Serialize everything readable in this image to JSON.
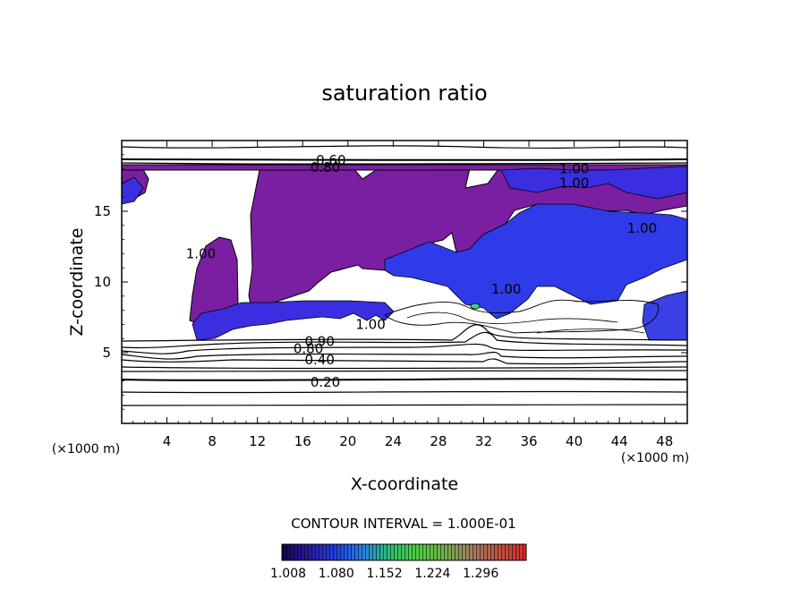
{
  "chart_data": {
    "type": "heatmap",
    "title": "saturation ratio",
    "xlabel": "X-coordinate",
    "ylabel": "Z-coordinate",
    "x_unit": "(×1000 m)",
    "z_unit": "(×1000 m)",
    "xlim": [
      0,
      50
    ],
    "ylim": [
      0,
      20
    ],
    "x_ticks": [
      "4",
      "8",
      "12",
      "16",
      "20",
      "24",
      "28",
      "32",
      "36",
      "40",
      "44",
      "48"
    ],
    "y_ticks": [
      "5",
      "10",
      "15"
    ],
    "contour_interval_text": "CONTOUR INTERVAL = 1.000E-01",
    "contour_labels": [
      {
        "text": "0.20",
        "x": 18.0,
        "z": 2.9
      },
      {
        "text": "0.40",
        "x": 17.5,
        "z": 4.5
      },
      {
        "text": "0.80",
        "x": 16.5,
        "z": 5.3
      },
      {
        "text": "0.90",
        "x": 17.5,
        "z": 5.8
      },
      {
        "text": "0.60",
        "x": 18.5,
        "z": 18.6
      },
      {
        "text": "0.80",
        "x": 18.0,
        "z": 18.1
      },
      {
        "text": "1.00",
        "x": 40.0,
        "z": 18.0
      },
      {
        "text": "1.00",
        "x": 40.0,
        "z": 17.0
      },
      {
        "text": "1.00",
        "x": 46.0,
        "z": 13.8
      },
      {
        "text": "1.00",
        "x": 7.0,
        "z": 12.0
      },
      {
        "text": "1.00",
        "x": 34.0,
        "z": 9.5
      },
      {
        "text": "1.00",
        "x": 22.0,
        "z": 7.0
      }
    ],
    "colorbar": {
      "ticks": [
        "1.008",
        "1.080",
        "1.152",
        "1.224",
        "1.296"
      ],
      "colors": [
        "#1a0050",
        "#2a1aa0",
        "#2040e0",
        "#2a80e8",
        "#30c070",
        "#50d040",
        "#70b050",
        "#a08060",
        "#c05040",
        "#d03030"
      ]
    },
    "supersaturated_color": "#7b1fa2"
  }
}
